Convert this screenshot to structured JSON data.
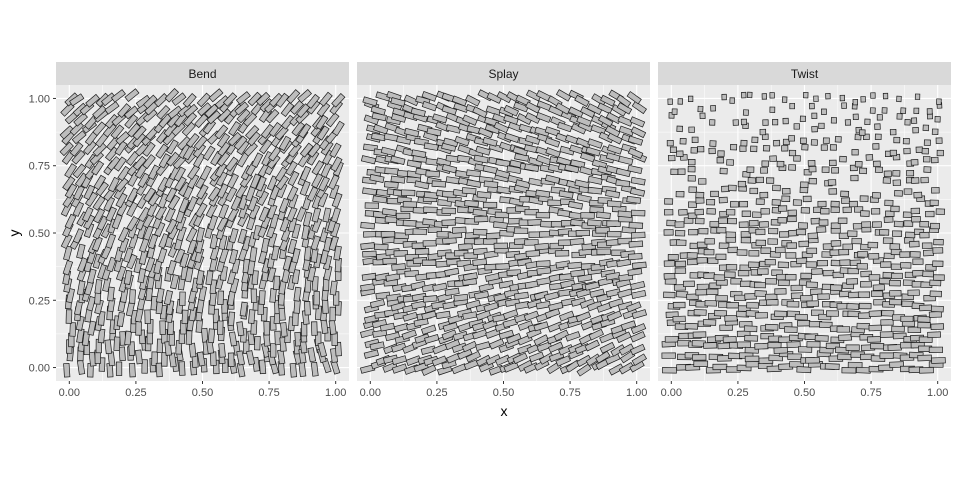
{
  "chart_data": {
    "type": "scatter",
    "subtype": "faceted-oriented-rectangles",
    "xlabel": "x",
    "ylabel": "y",
    "xlim": [
      -0.05,
      1.05
    ],
    "ylim": [
      -0.05,
      1.05
    ],
    "x_ticks": [
      "0.00",
      "0.25",
      "0.50",
      "0.75",
      "1.00"
    ],
    "y_ticks": [
      "0.00",
      "0.25",
      "0.50",
      "0.75",
      "1.00"
    ],
    "grid": true,
    "legend": "none",
    "facets": [
      "Bend",
      "Splay",
      "Twist"
    ],
    "panel_background": "#ebebeb",
    "strip_background": "#d9d9d9",
    "mark_fill": "#bdbdbd",
    "mark_stroke": "#1a1a1a",
    "grid_color": "#ffffff"
  }
}
